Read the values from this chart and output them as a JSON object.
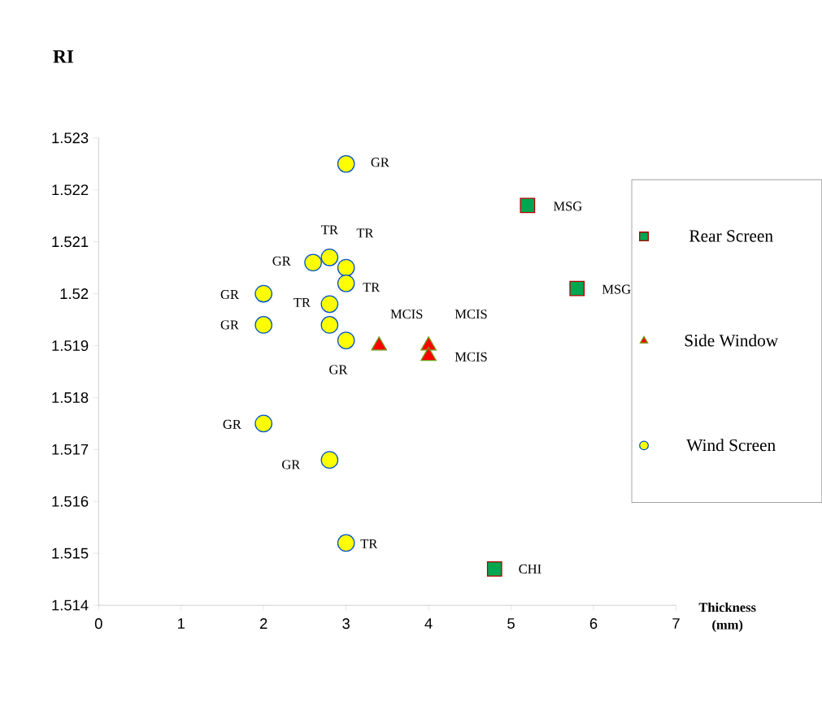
{
  "chart_data": {
    "type": "scatter",
    "xlabel": "Thickness (mm)",
    "ylabel": "RI",
    "xlim": [
      0,
      7
    ],
    "xticks": [
      0,
      1,
      2,
      3,
      4,
      5,
      6,
      7
    ],
    "ylim": [
      1.514,
      1.523
    ],
    "yticks": [
      1.514,
      1.515,
      1.516,
      1.517,
      1.518,
      1.519,
      1.52,
      1.521,
      1.522,
      1.523
    ],
    "grid": false,
    "legend": "right",
    "series": [
      {
        "name": "Rear Screen",
        "color": "#00a650",
        "marker": "square",
        "x": [
          5.2,
          5.8,
          4.8
        ],
        "values": [
          1.5217,
          1.5201,
          1.5147
        ]
      },
      {
        "name": "Side Window",
        "color": "#ff0000",
        "marker": "triangle",
        "x": [
          3.4,
          4,
          4
        ],
        "values": [
          1.519,
          1.519,
          1.5188
        ]
      },
      {
        "name": "Wind Screen",
        "color": "#ffff00",
        "marker": "circle",
        "x": [
          3,
          2.8,
          2.6,
          3,
          3,
          2,
          2.8,
          2,
          2.8,
          3,
          2,
          2.8,
          3
        ],
        "values": [
          1.5225,
          1.5207,
          1.5206,
          1.5205,
          1.5202,
          1.52,
          1.5198,
          1.5194,
          1.5194,
          1.5191,
          1.5175,
          1.5168,
          1.5152
        ]
      }
    ],
    "annotations": [
      {
        "text": "GR",
        "x": 3,
        "y": 1.5225
      },
      {
        "text": "TR",
        "x": 2.8,
        "y": 1.5207
      },
      {
        "text": "TR",
        "x": 3,
        "y": 1.5205
      },
      {
        "text": "GR",
        "x": 2.6,
        "y": 1.5206
      },
      {
        "text": "TR",
        "x": 3,
        "y": 1.5202
      },
      {
        "text": "GR",
        "x": 2,
        "y": 1.52
      },
      {
        "text": "TR",
        "x": 2.8,
        "y": 1.5198
      },
      {
        "text": "GR",
        "x": 2,
        "y": 1.5194
      },
      {
        "text": "MCIS",
        "x": 3.4,
        "y": 1.519
      },
      {
        "text": "MCIS",
        "x": 4,
        "y": 1.519
      },
      {
        "text": "GR",
        "x": 3,
        "y": 1.5191
      },
      {
        "text": "MCIS",
        "x": 4,
        "y": 1.5188
      },
      {
        "text": "GR",
        "x": 2,
        "y": 1.5175
      },
      {
        "text": "GR",
        "x": 2.8,
        "y": 1.5168
      },
      {
        "text": "TR",
        "x": 3,
        "y": 1.5152
      },
      {
        "text": "MSG",
        "x": 5.2,
        "y": 1.5217
      },
      {
        "text": "MSG",
        "x": 5.8,
        "y": 1.5201
      },
      {
        "text": "CHI",
        "x": 4.8,
        "y": 1.5147
      }
    ]
  }
}
